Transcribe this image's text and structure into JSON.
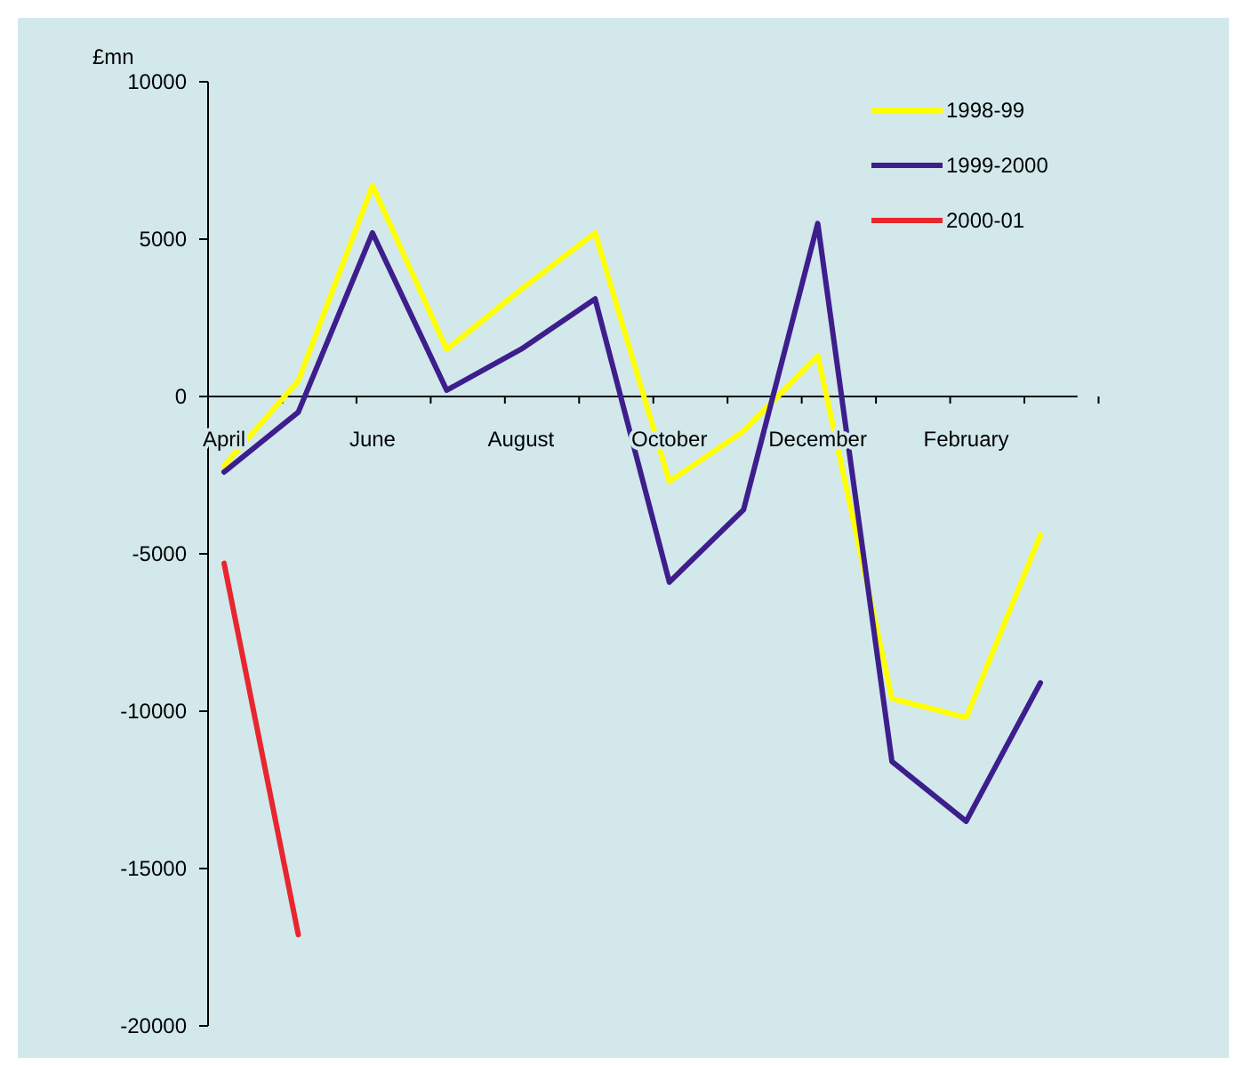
{
  "chart_data": {
    "type": "line",
    "ylabel": "£mn",
    "categories": [
      "April",
      null,
      "June",
      null,
      "August",
      null,
      "October",
      null,
      "December",
      null,
      "February",
      null
    ],
    "series": [
      {
        "name": "1998-99",
        "color": "#ffff00",
        "values": [
          -2200,
          500,
          6700,
          1500,
          3400,
          5200,
          -2700,
          -1100,
          1300,
          -9600,
          -10200,
          -4400
        ]
      },
      {
        "name": "1999-2000",
        "color": "#3d1e8c",
        "values": [
          -2400,
          -500,
          5200,
          200,
          1500,
          3100,
          -5900,
          -3600,
          5500,
          -11600,
          -13500,
          -9100
        ]
      },
      {
        "name": "2000-01",
        "color": "#e8262e",
        "values": [
          -5300,
          -17100,
          null,
          null,
          null,
          null,
          null,
          null,
          null,
          null,
          null,
          null
        ]
      }
    ],
    "ylim": [
      -20000,
      10000
    ],
    "yticks": [
      -20000,
      -15000,
      -10000,
      -5000,
      0,
      5000,
      10000
    ],
    "legend": "top right",
    "marker": "none",
    "line_style": "solid"
  }
}
